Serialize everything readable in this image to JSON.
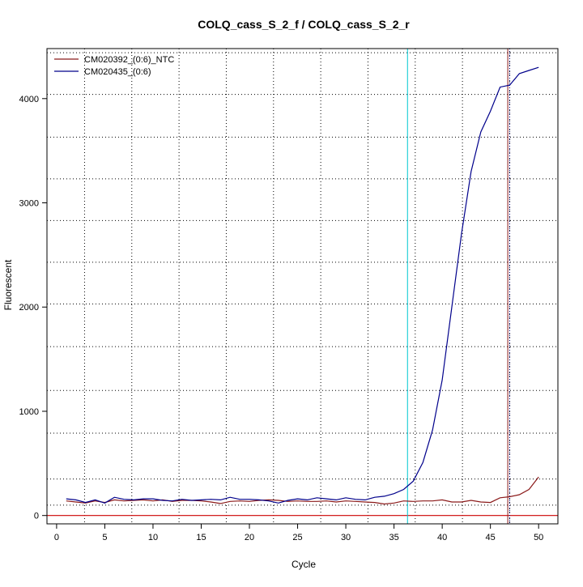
{
  "chart_data": {
    "type": "line",
    "title": "COLQ_cass_S_2_f / COLQ_cass_S_2_r",
    "xlabel": "Cycle",
    "ylabel": "Fluorescent",
    "xlim": [
      -1,
      52
    ],
    "ylim": [
      -80,
      4480
    ],
    "xticks": [
      0,
      5,
      10,
      15,
      20,
      25,
      30,
      35,
      40,
      45,
      50
    ],
    "yticks": [
      0,
      1000,
      2000,
      3000,
      4000
    ],
    "grid": true,
    "legend_position": "top-left",
    "x": [
      1,
      2,
      3,
      4,
      5,
      6,
      7,
      8,
      9,
      10,
      11,
      12,
      13,
      14,
      15,
      16,
      17,
      18,
      19,
      20,
      21,
      22,
      23,
      24,
      25,
      26,
      27,
      28,
      29,
      30,
      31,
      32,
      33,
      34,
      35,
      36,
      37,
      38,
      39,
      40,
      41,
      42,
      43,
      44,
      45,
      46,
      47,
      48,
      49,
      50
    ],
    "series": [
      {
        "name": "CM020392_(0:6)_NTC",
        "color": "#8b1a1a",
        "values": [
          140,
          130,
          120,
          140,
          125,
          150,
          140,
          145,
          150,
          140,
          150,
          135,
          145,
          145,
          140,
          130,
          115,
          135,
          140,
          135,
          145,
          150,
          145,
          135,
          140,
          135,
          135,
          140,
          130,
          140,
          135,
          130,
          125,
          110,
          120,
          140,
          135,
          140,
          140,
          150,
          130,
          130,
          145,
          130,
          125,
          170,
          180,
          200,
          250,
          370
        ]
      },
      {
        "name": "CM020435_(0:6)",
        "color": "#00008b",
        "values": [
          160,
          150,
          125,
          150,
          120,
          175,
          155,
          150,
          160,
          160,
          145,
          140,
          155,
          145,
          150,
          155,
          150,
          175,
          155,
          155,
          150,
          140,
          120,
          145,
          160,
          150,
          170,
          160,
          150,
          170,
          155,
          150,
          175,
          185,
          210,
          250,
          330,
          510,
          820,
          1300,
          2000,
          2700,
          3300,
          3680,
          3880,
          4110,
          4130,
          4240,
          4270,
          4300
        ]
      }
    ],
    "hlines": [
      {
        "y": 0,
        "color": "#cc0000"
      }
    ],
    "vlines": [
      {
        "x": 36.4,
        "color": "#00c8d2"
      },
      {
        "x": 46.8,
        "color": "#8b1a1a"
      },
      {
        "x": 47.0,
        "color": "#000080",
        "style": "dotted"
      }
    ],
    "grid_dotted_x": [
      2.9,
      7.8,
      12.7,
      17.6,
      22.5,
      27.4,
      32.3,
      37.2,
      42.1,
      47.0
    ],
    "grid_dotted_y": [
      100,
      350,
      790,
      1200,
      1620,
      2030,
      2430,
      2830,
      3230,
      3630,
      4040,
      4440
    ]
  }
}
